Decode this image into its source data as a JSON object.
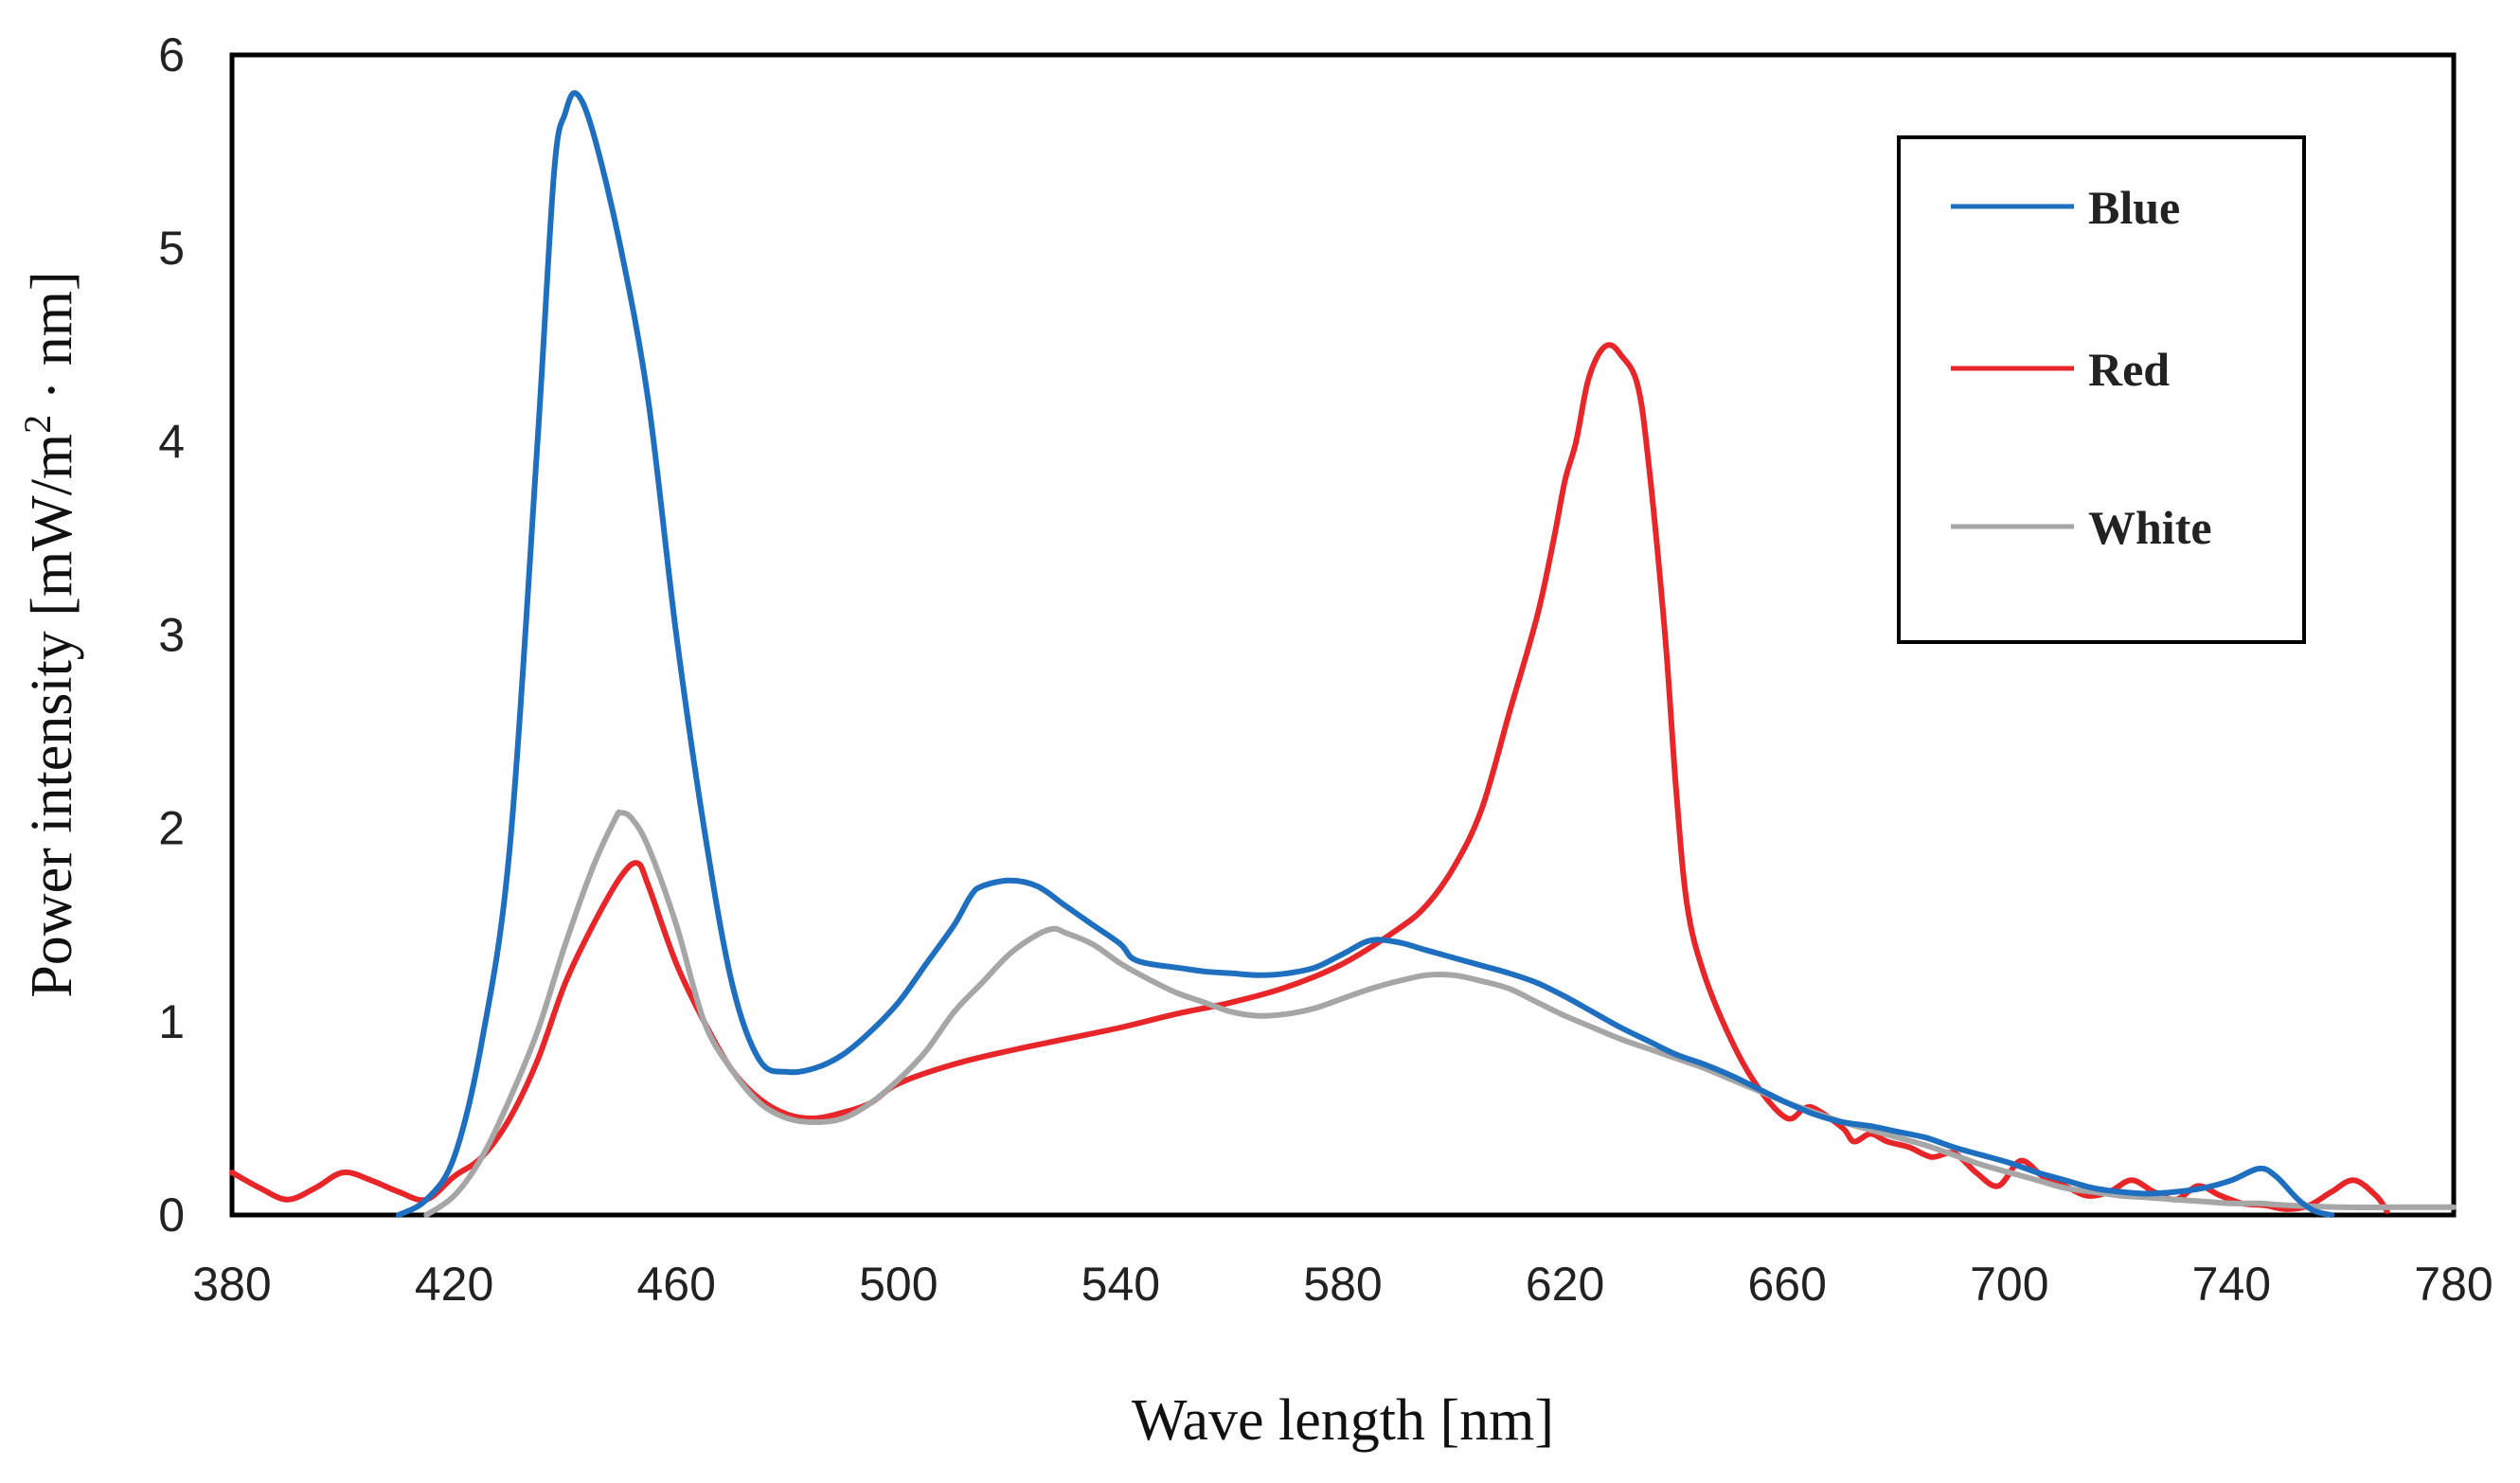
{
  "chart_data": {
    "type": "line",
    "title": "",
    "xlabel": "Wave length [nm]",
    "ylabel_prefix": "Power intensity [mW/m",
    "ylabel_sup": "2",
    "ylabel_suffix": " · nm]",
    "xlim": [
      380,
      780
    ],
    "ylim": [
      0,
      6
    ],
    "xticks": [
      380,
      420,
      460,
      500,
      540,
      580,
      620,
      660,
      700,
      740,
      780
    ],
    "yticks": [
      0,
      1,
      2,
      3,
      4,
      5,
      6
    ],
    "grid": false,
    "legend_position": "top-right",
    "series": [
      {
        "name": "Blue",
        "color": "#1f6fc0",
        "points": [
          [
            410,
            0
          ],
          [
            415,
            0.08
          ],
          [
            420,
            0.3
          ],
          [
            425,
            0.9
          ],
          [
            430,
            1.9
          ],
          [
            435,
            4.0
          ],
          [
            438,
            5.4
          ],
          [
            440,
            5.7
          ],
          [
            442,
            5.8
          ],
          [
            445,
            5.6
          ],
          [
            450,
            5.0
          ],
          [
            455,
            4.2
          ],
          [
            460,
            3.0
          ],
          [
            465,
            2.0
          ],
          [
            470,
            1.2
          ],
          [
            475,
            0.8
          ],
          [
            480,
            0.74
          ],
          [
            485,
            0.76
          ],
          [
            490,
            0.83
          ],
          [
            495,
            0.95
          ],
          [
            500,
            1.1
          ],
          [
            505,
            1.3
          ],
          [
            510,
            1.5
          ],
          [
            513,
            1.65
          ],
          [
            515,
            1.7
          ],
          [
            520,
            1.73
          ],
          [
            525,
            1.7
          ],
          [
            530,
            1.6
          ],
          [
            535,
            1.5
          ],
          [
            540,
            1.4
          ],
          [
            542,
            1.33
          ],
          [
            545,
            1.3
          ],
          [
            550,
            1.28
          ],
          [
            555,
            1.26
          ],
          [
            560,
            1.25
          ],
          [
            565,
            1.24
          ],
          [
            570,
            1.25
          ],
          [
            575,
            1.28
          ],
          [
            580,
            1.35
          ],
          [
            585,
            1.42
          ],
          [
            590,
            1.41
          ],
          [
            595,
            1.37
          ],
          [
            600,
            1.33
          ],
          [
            605,
            1.29
          ],
          [
            610,
            1.25
          ],
          [
            615,
            1.2
          ],
          [
            620,
            1.13
          ],
          [
            625,
            1.05
          ],
          [
            630,
            0.97
          ],
          [
            635,
            0.9
          ],
          [
            640,
            0.83
          ],
          [
            645,
            0.78
          ],
          [
            650,
            0.72
          ],
          [
            655,
            0.65
          ],
          [
            660,
            0.58
          ],
          [
            665,
            0.52
          ],
          [
            670,
            0.48
          ],
          [
            675,
            0.46
          ],
          [
            680,
            0.43
          ],
          [
            685,
            0.4
          ],
          [
            690,
            0.35
          ],
          [
            695,
            0.31
          ],
          [
            700,
            0.27
          ],
          [
            705,
            0.22
          ],
          [
            710,
            0.18
          ],
          [
            715,
            0.14
          ],
          [
            720,
            0.12
          ],
          [
            725,
            0.11
          ],
          [
            730,
            0.12
          ],
          [
            735,
            0.14
          ],
          [
            740,
            0.18
          ],
          [
            745,
            0.24
          ],
          [
            748,
            0.2
          ],
          [
            752,
            0.08
          ],
          [
            755,
            0.02
          ],
          [
            758,
            0
          ]
        ]
      },
      {
        "name": "Red",
        "color": "#e8262a",
        "points": [
          [
            380,
            0.22
          ],
          [
            385,
            0.14
          ],
          [
            390,
            0.08
          ],
          [
            395,
            0.14
          ],
          [
            400,
            0.22
          ],
          [
            405,
            0.18
          ],
          [
            410,
            0.12
          ],
          [
            415,
            0.08
          ],
          [
            420,
            0.2
          ],
          [
            425,
            0.3
          ],
          [
            430,
            0.5
          ],
          [
            435,
            0.8
          ],
          [
            440,
            1.2
          ],
          [
            445,
            1.5
          ],
          [
            450,
            1.75
          ],
          [
            453,
            1.82
          ],
          [
            455,
            1.7
          ],
          [
            460,
            1.3
          ],
          [
            465,
            1.0
          ],
          [
            470,
            0.75
          ],
          [
            475,
            0.6
          ],
          [
            480,
            0.52
          ],
          [
            485,
            0.5
          ],
          [
            490,
            0.53
          ],
          [
            495,
            0.58
          ],
          [
            500,
            0.68
          ],
          [
            510,
            0.78
          ],
          [
            520,
            0.85
          ],
          [
            530,
            0.91
          ],
          [
            540,
            0.97
          ],
          [
            550,
            1.04
          ],
          [
            560,
            1.1
          ],
          [
            570,
            1.18
          ],
          [
            580,
            1.3
          ],
          [
            590,
            1.48
          ],
          [
            595,
            1.6
          ],
          [
            600,
            1.8
          ],
          [
            605,
            2.1
          ],
          [
            610,
            2.6
          ],
          [
            615,
            3.1
          ],
          [
            618,
            3.5
          ],
          [
            620,
            3.8
          ],
          [
            622,
            4.0
          ],
          [
            624,
            4.3
          ],
          [
            626,
            4.45
          ],
          [
            628,
            4.5
          ],
          [
            630,
            4.45
          ],
          [
            633,
            4.3
          ],
          [
            635,
            3.9
          ],
          [
            638,
            3.0
          ],
          [
            640,
            2.2
          ],
          [
            642,
            1.6
          ],
          [
            645,
            1.25
          ],
          [
            650,
            0.9
          ],
          [
            655,
            0.65
          ],
          [
            660,
            0.5
          ],
          [
            663,
            0.55
          ],
          [
            665,
            0.55
          ],
          [
            670,
            0.45
          ],
          [
            672,
            0.38
          ],
          [
            675,
            0.42
          ],
          [
            678,
            0.38
          ],
          [
            682,
            0.35
          ],
          [
            686,
            0.3
          ],
          [
            690,
            0.32
          ],
          [
            694,
            0.22
          ],
          [
            698,
            0.15
          ],
          [
            702,
            0.28
          ],
          [
            706,
            0.2
          ],
          [
            710,
            0.15
          ],
          [
            714,
            0.1
          ],
          [
            718,
            0.12
          ],
          [
            722,
            0.18
          ],
          [
            726,
            0.12
          ],
          [
            730,
            0.08
          ],
          [
            734,
            0.15
          ],
          [
            738,
            0.1
          ],
          [
            742,
            0.06
          ],
          [
            746,
            0.05
          ],
          [
            750,
            0.03
          ],
          [
            754,
            0.05
          ],
          [
            758,
            0.12
          ],
          [
            762,
            0.18
          ],
          [
            766,
            0.1
          ],
          [
            768,
            0.02
          ]
        ]
      },
      {
        "name": "White",
        "color": "#a6a6a6",
        "points": [
          [
            415,
            0
          ],
          [
            420,
            0.1
          ],
          [
            425,
            0.3
          ],
          [
            430,
            0.6
          ],
          [
            435,
            0.95
          ],
          [
            440,
            1.4
          ],
          [
            445,
            1.8
          ],
          [
            449,
            2.05
          ],
          [
            450,
            2.08
          ],
          [
            452,
            2.05
          ],
          [
            455,
            1.9
          ],
          [
            460,
            1.5
          ],
          [
            465,
            1.0
          ],
          [
            470,
            0.75
          ],
          [
            475,
            0.58
          ],
          [
            480,
            0.5
          ],
          [
            485,
            0.48
          ],
          [
            490,
            0.5
          ],
          [
            495,
            0.58
          ],
          [
            500,
            0.7
          ],
          [
            505,
            0.85
          ],
          [
            510,
            1.05
          ],
          [
            515,
            1.2
          ],
          [
            520,
            1.35
          ],
          [
            525,
            1.45
          ],
          [
            528,
            1.48
          ],
          [
            530,
            1.46
          ],
          [
            535,
            1.4
          ],
          [
            540,
            1.3
          ],
          [
            545,
            1.22
          ],
          [
            550,
            1.15
          ],
          [
            555,
            1.1
          ],
          [
            560,
            1.05
          ],
          [
            565,
            1.03
          ],
          [
            570,
            1.04
          ],
          [
            575,
            1.07
          ],
          [
            580,
            1.12
          ],
          [
            585,
            1.17
          ],
          [
            590,
            1.21
          ],
          [
            595,
            1.24
          ],
          [
            600,
            1.24
          ],
          [
            605,
            1.21
          ],
          [
            610,
            1.17
          ],
          [
            615,
            1.1
          ],
          [
            620,
            1.03
          ],
          [
            625,
            0.97
          ],
          [
            630,
            0.91
          ],
          [
            635,
            0.86
          ],
          [
            640,
            0.81
          ],
          [
            645,
            0.76
          ],
          [
            650,
            0.7
          ],
          [
            655,
            0.64
          ],
          [
            660,
            0.58
          ],
          [
            665,
            0.53
          ],
          [
            670,
            0.48
          ],
          [
            675,
            0.44
          ],
          [
            680,
            0.4
          ],
          [
            685,
            0.36
          ],
          [
            690,
            0.31
          ],
          [
            695,
            0.26
          ],
          [
            700,
            0.22
          ],
          [
            705,
            0.18
          ],
          [
            710,
            0.14
          ],
          [
            715,
            0.12
          ],
          [
            720,
            0.1
          ],
          [
            725,
            0.09
          ],
          [
            730,
            0.08
          ],
          [
            735,
            0.07
          ],
          [
            740,
            0.06
          ],
          [
            745,
            0.06
          ],
          [
            750,
            0.05
          ],
          [
            760,
            0.04
          ],
          [
            770,
            0.04
          ],
          [
            780,
            0.04
          ]
        ]
      }
    ]
  }
}
